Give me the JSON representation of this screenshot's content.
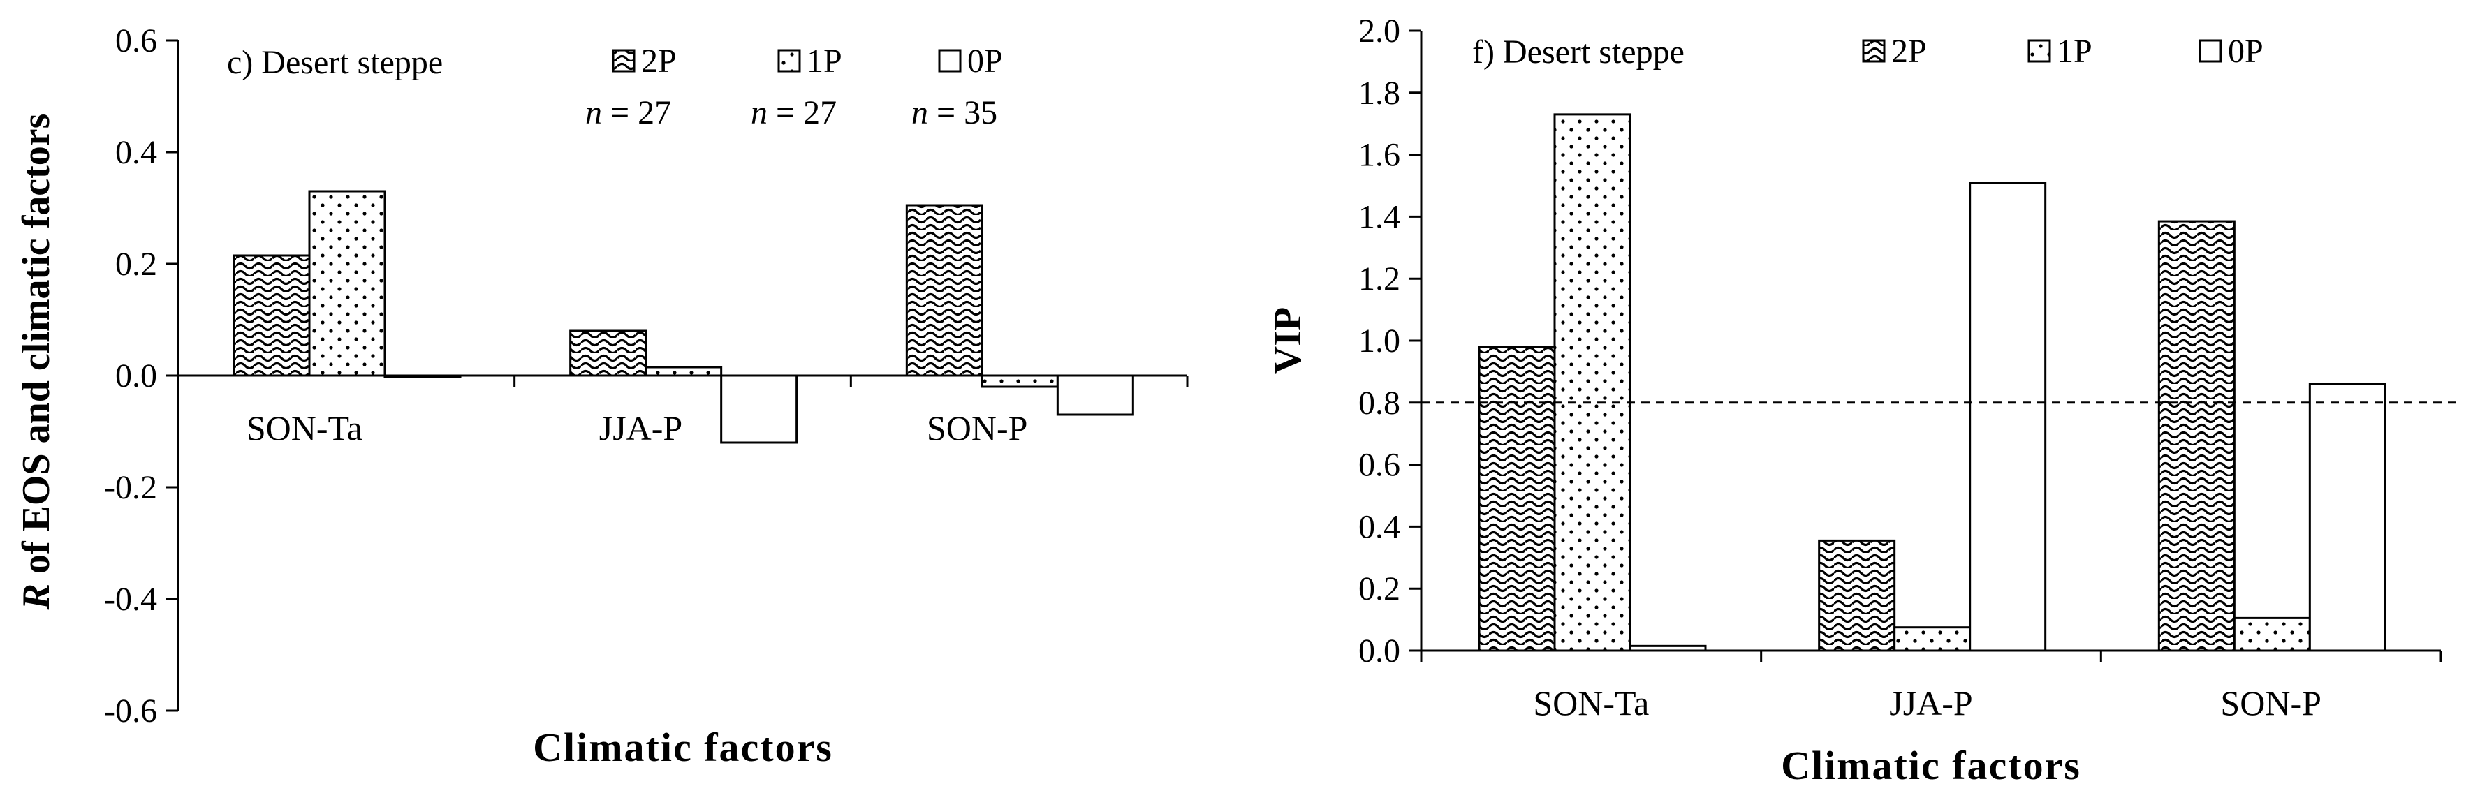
{
  "chart_data": [
    {
      "type": "bar",
      "title": "c) Desert steppe",
      "xlabel": "Climatic factors",
      "ylabel_italic": "R",
      "ylabel_rest": " of EOS and climatic factors",
      "categories": [
        "SON-Ta",
        "JJA-P",
        "SON-P"
      ],
      "ylim": [
        -0.6,
        0.6
      ],
      "yticks": [
        0.6,
        0.4,
        0.2,
        0.0,
        -0.2,
        -0.4,
        -0.6
      ],
      "ytick_labels": [
        "0.6",
        "0.4",
        "0.2",
        "0.0",
        "-0.2",
        "-0.4",
        "-0.6"
      ],
      "series": [
        {
          "name": "2P",
          "pattern": "wave",
          "values": [
            0.215,
            0.08,
            0.305
          ],
          "n_italic": "n",
          "n_rest": " = 27"
        },
        {
          "name": "1P",
          "pattern": "dots",
          "values": [
            0.33,
            0.015,
            -0.02
          ],
          "n_italic": "n",
          "n_rest": " = 27"
        },
        {
          "name": "0P",
          "pattern": "none",
          "values": [
            -0.003,
            -0.12,
            -0.07
          ],
          "n_italic": "n",
          "n_rest": " = 35"
        }
      ],
      "grid": false
    },
    {
      "type": "bar",
      "title": "f) Desert steppe",
      "xlabel": "Climatic factors",
      "ylabel": "VIP",
      "categories": [
        "SON-Ta",
        "JJA-P",
        "SON-P"
      ],
      "ylim": [
        0.0,
        2.0
      ],
      "yticks": [
        0.0,
        0.2,
        0.4,
        0.6,
        0.8,
        1.0,
        1.2,
        1.4,
        1.6,
        1.8,
        2.0
      ],
      "ytick_labels": [
        "0.0",
        "0.2",
        "0.4",
        "0.6",
        "0.8",
        "1.0",
        "1.2",
        "1.4",
        "1.6",
        "1.8",
        "2.0"
      ],
      "threshold": 0.8,
      "series": [
        {
          "name": "2P",
          "pattern": "wave",
          "values": [
            0.98,
            0.355,
            1.385
          ]
        },
        {
          "name": "1P",
          "pattern": "dots",
          "values": [
            1.73,
            0.075,
            0.105
          ]
        },
        {
          "name": "0P",
          "pattern": "none",
          "values": [
            0.015,
            1.51,
            0.86
          ]
        }
      ],
      "grid": false
    }
  ]
}
